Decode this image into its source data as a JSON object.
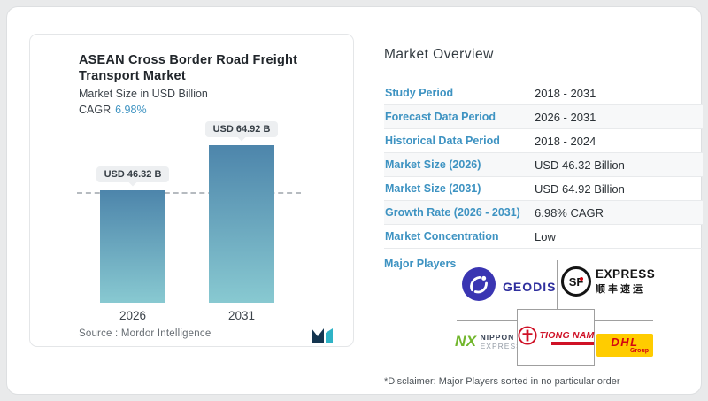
{
  "chart_card": {
    "title": "ASEAN Cross Border Road Freight Transport Market",
    "subtitle": "Market Size in USD Billion",
    "cagr_label": "CAGR",
    "cagr_value": "6.98%",
    "source_text": "Source :  Mordor Intelligence"
  },
  "chart_data": {
    "type": "bar",
    "title": "ASEAN Cross Border Road Freight Transport Market",
    "ylabel": "Market Size in USD Billion",
    "cagr": "6.98%",
    "categories": [
      "2026",
      "2031"
    ],
    "values": [
      46.32,
      64.92
    ],
    "bar_labels": [
      "USD 46.32 B",
      "USD 64.92 B"
    ],
    "units": "USD Billion",
    "ylim": [
      0,
      64.92
    ],
    "grid": false,
    "reference_line_at_value": 46.32,
    "bar_gradient_top": "#4d85ab",
    "bar_gradient_bottom": "#88c9d1"
  },
  "overview": {
    "heading": "Market Overview",
    "rows": [
      {
        "label": "Study Period",
        "value": "2018 - 2031"
      },
      {
        "label": "Forecast Data Period",
        "value": "2026 - 2031"
      },
      {
        "label": "Historical Data Period",
        "value": "2018 - 2024"
      },
      {
        "label": "Market Size (2026)",
        "value": "USD 46.32 Billion"
      },
      {
        "label": "Market Size (2031)",
        "value": "USD 64.92 Billion"
      },
      {
        "label": "Growth Rate (2026 - 2031)",
        "value": "6.98% CAGR"
      },
      {
        "label": "Market Concentration",
        "value": "Low"
      }
    ],
    "major_players_label": "Major Players",
    "major_players": [
      "GEODIS",
      "SF Express",
      "Nippon Express",
      "Tiong Nam",
      "DHL Group"
    ],
    "disclaimer": "*Disclaimer: Major Players sorted in no particular order"
  },
  "logos": {
    "geodis": {
      "text": "GEODIS"
    },
    "sf": {
      "monogram": "SF",
      "line1": "EXPRESS",
      "line2": "顺丰速运"
    },
    "nippon": {
      "monogram": "NX",
      "line1": "NIPPON",
      "line2": "EXPRESS"
    },
    "tiongnam": {
      "text": "TIONG NAM"
    },
    "dhl": {
      "text": "DHL",
      "sub": "Group"
    }
  },
  "colors": {
    "accent_blue": "#3e93c2",
    "bar_top": "#4d85ab",
    "bar_bottom": "#88c9d1",
    "geodis_blue": "#2f2f9e",
    "nippon_green": "#71b62c",
    "tiongnam_red": "#cf1126",
    "dhl_yellow": "#ffcc00",
    "dhl_red": "#d40511"
  }
}
